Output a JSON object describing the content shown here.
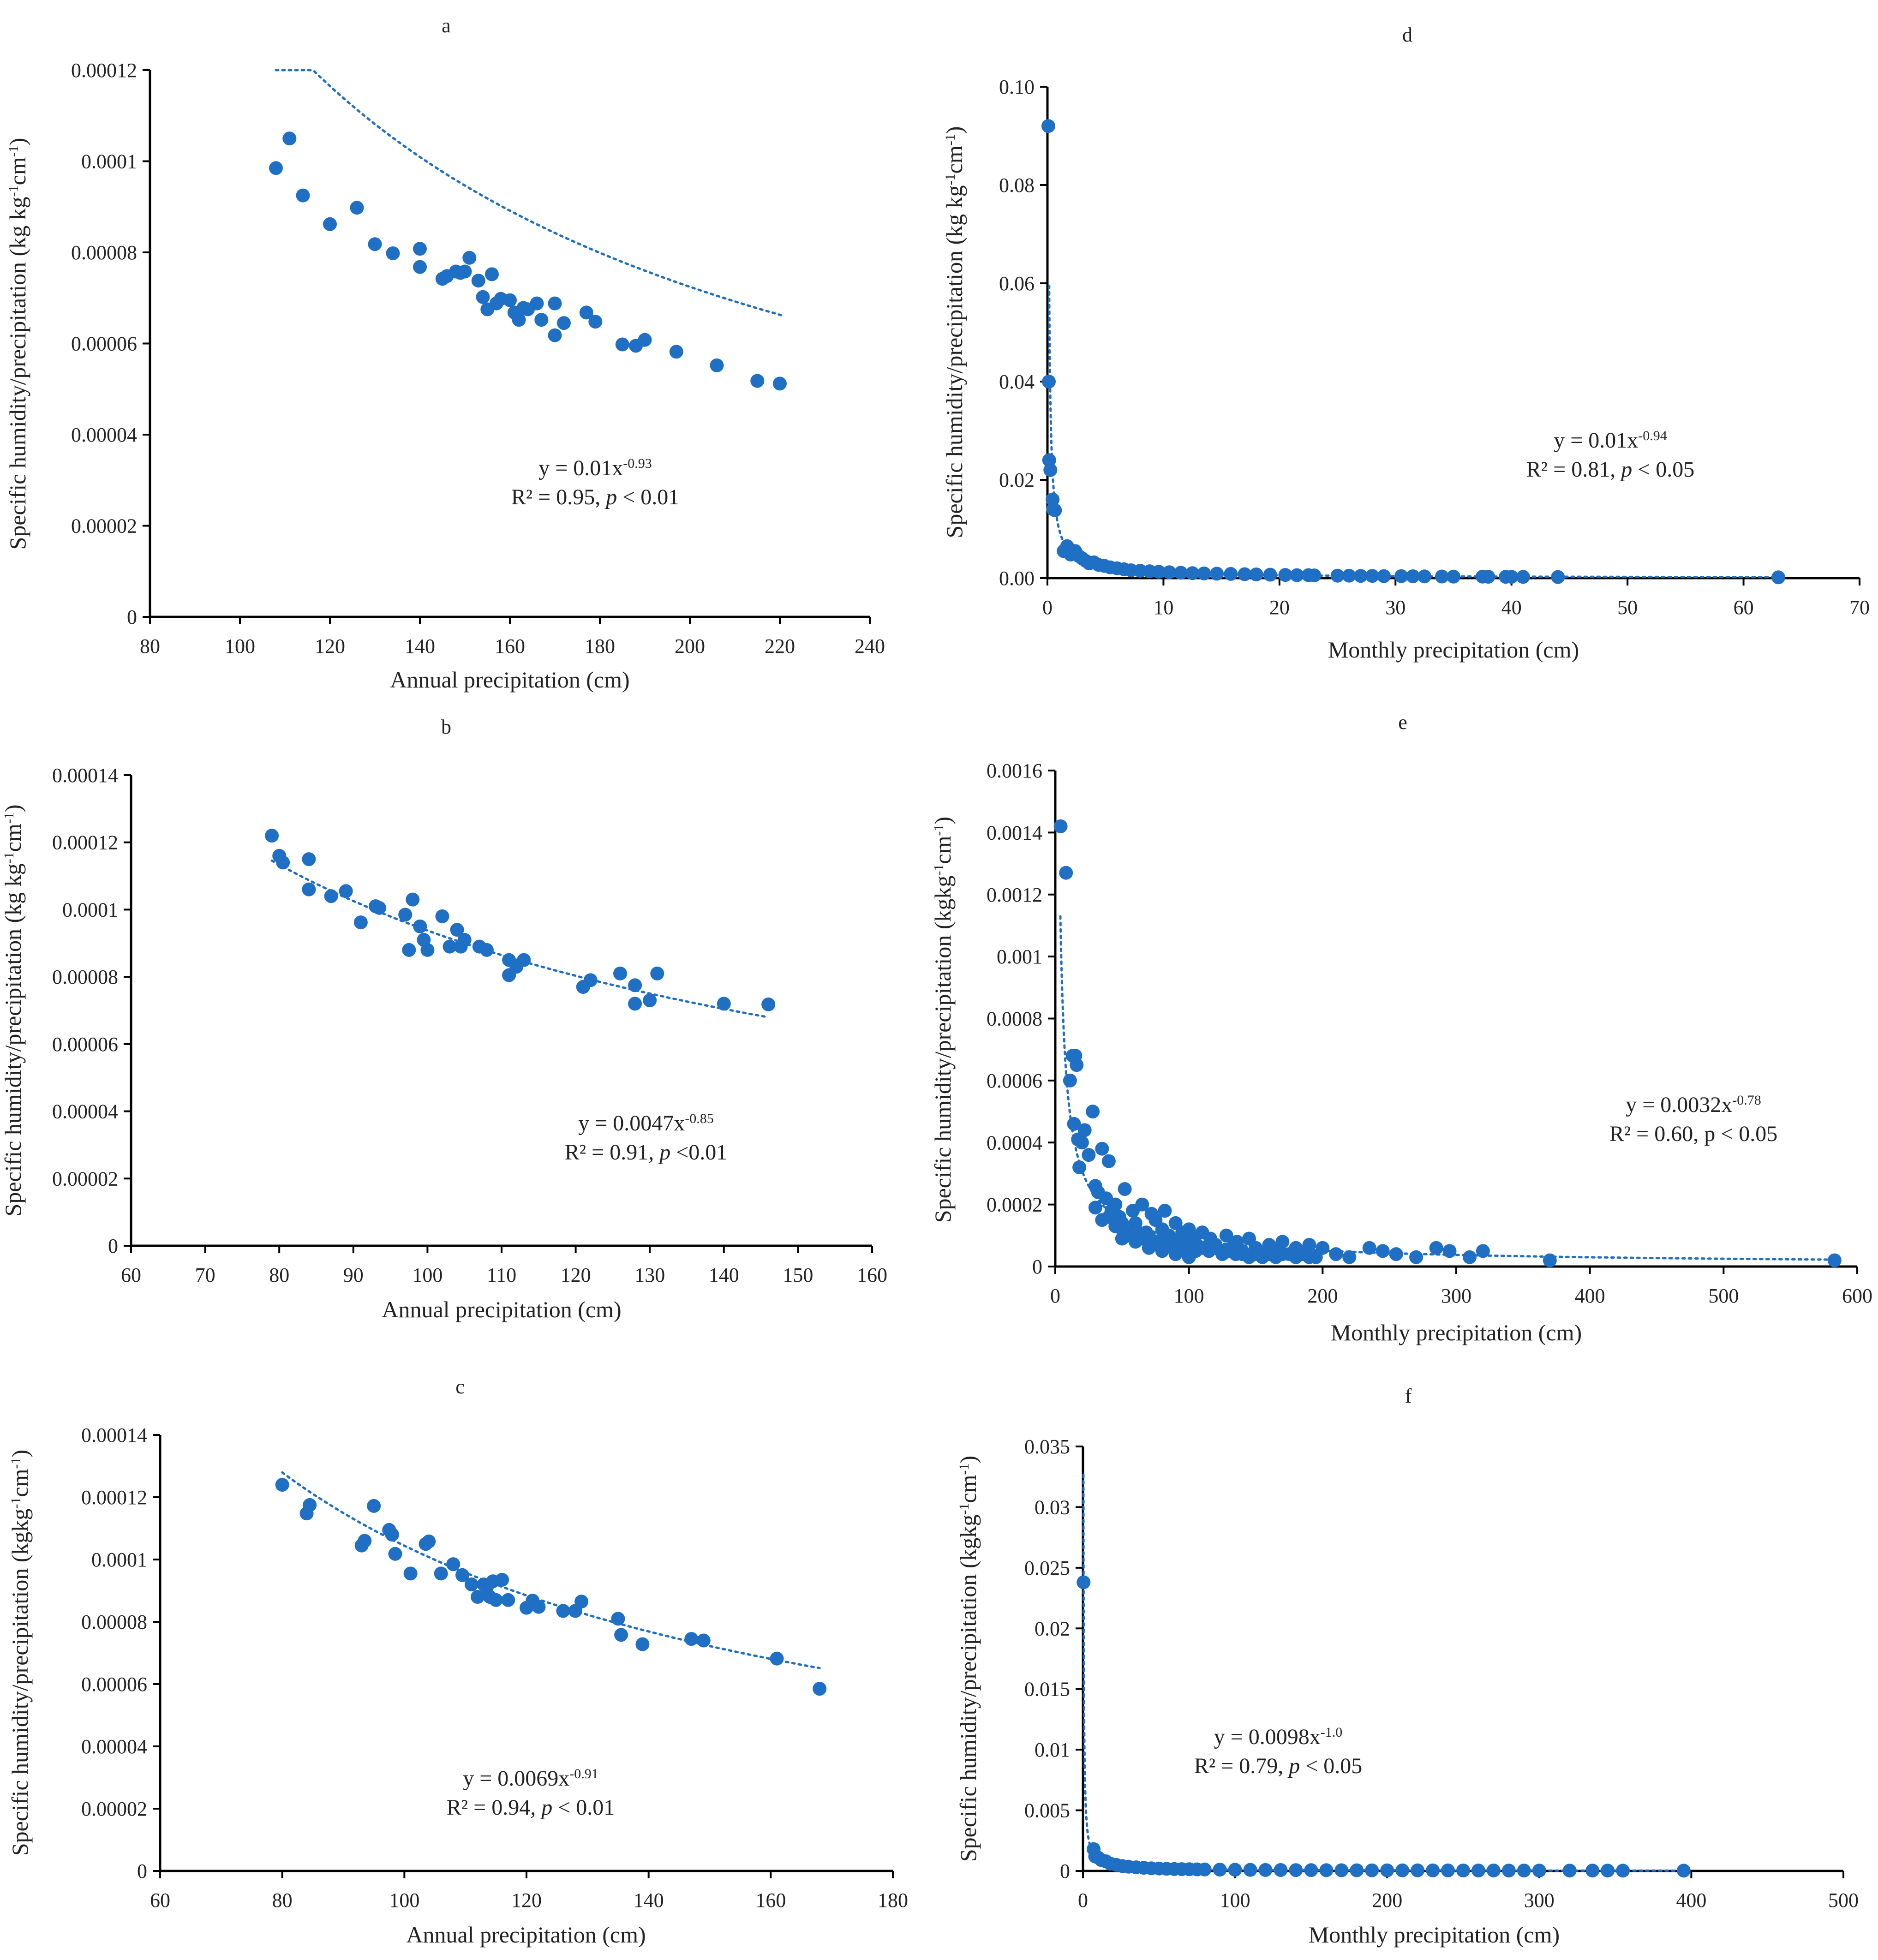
{
  "chart_data": [
    {
      "panel": "a",
      "type": "scatter",
      "xlabel": "Annual precipitation (cm)",
      "ylabel_main": "Specific humidity/precipitation (kg kg",
      "ylabel_sup1": "-1",
      "ylabel_mid": "cm",
      "ylabel_sup2": "-1",
      "ylabel_end": ")",
      "xlim": [
        80,
        240
      ],
      "ylim": [
        0,
        0.00012
      ],
      "x_ticks": [
        80,
        100,
        120,
        140,
        160,
        180,
        200,
        220,
        240
      ],
      "x_tick_labels": [
        "80",
        "100",
        "120",
        "140",
        "160",
        "180",
        "200",
        "220",
        "240"
      ],
      "y_ticks": [
        0,
        2e-05,
        4e-05,
        6e-05,
        8e-05,
        0.0001,
        0.00012
      ],
      "y_tick_labels": [
        "0",
        "0.00002",
        "0.00004",
        "0.00006",
        "0.00008",
        "0.0001",
        "0.00012"
      ],
      "color": "#1f6fc5",
      "trendline": {
        "type": "power",
        "a": 0.01,
        "b": -0.93,
        "x_range": [
          108,
          221
        ]
      },
      "equation_line1_prefix": "y = 0.01x",
      "equation_line1_sup": "-0.93",
      "equation_line2_a": "R² = 0.95, ",
      "equation_line2_p": "p",
      "equation_line2_b": " < 0.01",
      "x": [
        108,
        111,
        114,
        120,
        126,
        130,
        134,
        140,
        140,
        145,
        146,
        148,
        149,
        150,
        151,
        153,
        154,
        155,
        156,
        157,
        158,
        160,
        161,
        162,
        163,
        164,
        166,
        167,
        170,
        170,
        172,
        177,
        179,
        185,
        188,
        190,
        197,
        206,
        215,
        220
      ],
      "y": [
        9.85e-05,
        0.000105,
        9.25e-05,
        8.62e-05,
        8.98e-05,
        8.18e-05,
        7.98e-05,
        7.68e-05,
        8.08e-05,
        7.42e-05,
        7.48e-05,
        7.58e-05,
        7.55e-05,
        7.58e-05,
        7.88e-05,
        7.38e-05,
        7.02e-05,
        6.75e-05,
        7.52e-05,
        6.88e-05,
        6.98e-05,
        6.95e-05,
        6.68e-05,
        6.52e-05,
        6.78e-05,
        6.75e-05,
        6.88e-05,
        6.52e-05,
        6.18e-05,
        6.88e-05,
        6.45e-05,
        6.68e-05,
        6.48e-05,
        5.98e-05,
        5.95e-05,
        6.08e-05,
        5.82e-05,
        5.52e-05,
        5.18e-05,
        5.12e-05
      ]
    },
    {
      "panel": "b",
      "type": "scatter",
      "xlabel": "Annual precipitation (cm)",
      "ylabel_main": "Specific humidity/precipitation (kg kg",
      "ylabel_sup1": "-1",
      "ylabel_mid": "cm",
      "ylabel_sup2": "-1",
      "ylabel_end": ")",
      "xlim": [
        60,
        160
      ],
      "ylim": [
        0,
        0.00014
      ],
      "x_ticks": [
        60,
        70,
        80,
        90,
        100,
        110,
        120,
        130,
        140,
        150,
        160
      ],
      "x_tick_labels": [
        "60",
        "70",
        "80",
        "90",
        "100",
        "110",
        "120",
        "130",
        "140",
        "150",
        "160"
      ],
      "y_ticks": [
        0,
        2e-05,
        4e-05,
        6e-05,
        8e-05,
        0.0001,
        0.00012,
        0.00014
      ],
      "y_tick_labels": [
        "0",
        "0.00002",
        "0.00004",
        "0.00006",
        "0.00008",
        "0.0001",
        "0.00012",
        "0.00014"
      ],
      "color": "#1f6fc5",
      "trendline": {
        "type": "power",
        "a": 0.0047,
        "b": -0.85,
        "x_range": [
          79,
          146
        ]
      },
      "equation_line1_prefix": "y = 0.0047x",
      "equation_line1_sup": "-0.85",
      "equation_line2_a": "R² = 0.91, ",
      "equation_line2_p": "p",
      "equation_line2_b": " <0.01",
      "x": [
        79,
        80,
        80.5,
        84,
        84,
        87,
        89,
        91,
        93,
        93.5,
        97,
        97.5,
        98,
        99,
        99.5,
        100,
        102,
        103,
        104,
        104.5,
        105,
        107,
        108,
        111,
        111,
        112,
        113,
        121,
        122,
        126,
        128,
        128,
        130,
        131,
        140,
        146
      ],
      "y": [
        0.000122,
        0.000116,
        0.000114,
        0.000115,
        0.000106,
        0.000104,
        0.0001055,
        9.62e-05,
        0.000101,
        0.0001005,
        9.85e-05,
        8.8e-05,
        0.000103,
        9.5e-05,
        9.1e-05,
        8.8e-05,
        9.8e-05,
        8.9e-05,
        9.4e-05,
        8.9e-05,
        9.1e-05,
        8.9e-05,
        8.8e-05,
        8.5e-05,
        8.05e-05,
        8.3e-05,
        8.5e-05,
        7.7e-05,
        7.9e-05,
        8.1e-05,
        7.75e-05,
        7.2e-05,
        7.3e-05,
        8.1e-05,
        7.2e-05,
        7.18e-05
      ]
    },
    {
      "panel": "c",
      "type": "scatter",
      "xlabel": "Annual precipitation (cm)",
      "ylabel_main": "Specific humidity/precipitation (kgkg",
      "ylabel_sup1": "-1",
      "ylabel_mid": "cm",
      "ylabel_sup2": "-1",
      "ylabel_end": ")",
      "xlim": [
        60,
        180
      ],
      "ylim": [
        0,
        0.00014
      ],
      "x_ticks": [
        60,
        80,
        100,
        120,
        140,
        160,
        180
      ],
      "x_tick_labels": [
        "60",
        "80",
        "100",
        "120",
        "140",
        "160",
        "180"
      ],
      "y_ticks": [
        0,
        2e-05,
        4e-05,
        6e-05,
        8e-05,
        0.0001,
        0.00012,
        0.00014
      ],
      "y_tick_labels": [
        "0",
        "0.00002",
        "0.00004",
        "0.00006",
        "0.00008",
        "0.0001",
        "0.00012",
        "0.00014"
      ],
      "color": "#1f6fc5",
      "trendline": {
        "type": "power",
        "a": 0.0069,
        "b": -0.91,
        "x_range": [
          80,
          168
        ]
      },
      "equation_line1_prefix": "y = 0.0069x",
      "equation_line1_sup": "-0.91",
      "equation_line2_a": "R² = 0.94, ",
      "equation_line2_p": "p",
      "equation_line2_b": " < 0.01",
      "x": [
        80,
        84,
        84.5,
        93,
        93.5,
        95,
        97.5,
        98,
        98.5,
        101,
        103.5,
        104,
        106,
        108,
        109.5,
        111,
        112,
        113,
        113.5,
        114,
        114.5,
        115,
        116,
        117,
        120,
        121,
        122,
        126,
        128,
        129,
        135,
        135.5,
        139,
        147,
        149,
        161,
        168
      ],
      "y": [
        0.000124,
        0.0001148,
        0.0001175,
        0.0001045,
        0.000106,
        0.0001172,
        0.0001095,
        0.000108,
        0.0001018,
        9.55e-05,
        0.000105,
        0.0001058,
        9.55e-05,
        9.85e-05,
        9.5e-05,
        9.2e-05,
        8.8e-05,
        9.2e-05,
        9.1e-05,
        8.8e-05,
        9.3e-05,
        8.7e-05,
        9.35e-05,
        8.7e-05,
        8.45e-05,
        8.68e-05,
        8.48e-05,
        8.35e-05,
        8.35e-05,
        8.65e-05,
        8.1e-05,
        7.58e-05,
        7.28e-05,
        7.45e-05,
        7.4e-05,
        6.82e-05,
        5.85e-05
      ]
    },
    {
      "panel": "d",
      "type": "scatter",
      "xlabel": "Monthly precipitation (cm)",
      "ylabel_main": "Specific humidity/precipitation (kg kg",
      "ylabel_sup1": "-1",
      "ylabel_mid": "cm",
      "ylabel_sup2": "-1",
      "ylabel_end": ")",
      "xlim": [
        0,
        70
      ],
      "ylim": [
        0,
        0.1
      ],
      "x_ticks": [
        0,
        10,
        20,
        30,
        40,
        50,
        60,
        70
      ],
      "x_tick_labels": [
        "0",
        "10",
        "20",
        "30",
        "40",
        "50",
        "60",
        "70"
      ],
      "y_ticks": [
        0,
        0.02,
        0.04,
        0.06,
        0.08,
        0.1
      ],
      "y_tick_labels": [
        "0.00",
        "0.02",
        "0.04",
        "0.06",
        "0.08",
        "0.10"
      ],
      "color": "#1f6fc5",
      "trendline": {
        "type": "power",
        "a": 0.01,
        "b": -0.94,
        "x_range": [
          0.15,
          63
        ]
      },
      "equation_line1_prefix": "y = 0.01x",
      "equation_line1_sup": "-0.94",
      "equation_line2_a": "R² = 0.81, ",
      "equation_line2_p": "p",
      "equation_line2_b": " < 0.05",
      "x": [
        0.08,
        0.12,
        0.15,
        0.25,
        0.45,
        0.5,
        0.65,
        1.4,
        1.7,
        2.0,
        2.4,
        2.7,
        3.0,
        3.3,
        3.6,
        4.0,
        4.4,
        4.9,
        5.4,
        6.0,
        6.6,
        7.2,
        8.0,
        8.8,
        9.6,
        10.5,
        11.5,
        12.5,
        13.5,
        14.6,
        15.8,
        17.0,
        18.0,
        19.2,
        20.5,
        21.5,
        22.5,
        23.0,
        25.0,
        26.0,
        27.0,
        28.0,
        29.0,
        30.5,
        31.5,
        32.5,
        34.0,
        35.0,
        37.5,
        38.0,
        39.5,
        40.0,
        41.0,
        44.0,
        63.0
      ],
      "y": [
        0.092,
        0.04,
        0.024,
        0.022,
        0.016,
        0.014,
        0.0138,
        0.0055,
        0.0065,
        0.0048,
        0.0055,
        0.0045,
        0.004,
        0.0035,
        0.003,
        0.0032,
        0.0027,
        0.0025,
        0.0022,
        0.002,
        0.0018,
        0.0016,
        0.0015,
        0.0014,
        0.0013,
        0.0012,
        0.0011,
        0.001,
        0.00095,
        0.0009,
        0.00085,
        0.0008,
        0.00075,
        0.0007,
        0.00065,
        0.0006,
        0.0006,
        0.00055,
        0.0005,
        0.0005,
        0.00045,
        0.00045,
        0.0004,
        0.0004,
        0.00038,
        0.00035,
        0.00033,
        0.0003,
        0.0003,
        0.00028,
        0.00027,
        0.00026,
        0.00025,
        0.00023,
        0.00016
      ]
    },
    {
      "panel": "e",
      "type": "scatter",
      "xlabel": "Monthly precipitation (cm)",
      "ylabel_main": "Specific humidity/precipitation (kgkg",
      "ylabel_sup1": "-1",
      "ylabel_mid": "cm",
      "ylabel_sup2": "-1",
      "ylabel_end": ")",
      "xlim": [
        0,
        600
      ],
      "ylim": [
        0,
        0.0016
      ],
      "x_ticks": [
        0,
        100,
        200,
        300,
        400,
        500,
        600
      ],
      "x_tick_labels": [
        "0",
        "100",
        "200",
        "300",
        "400",
        "500",
        "600"
      ],
      "y_ticks": [
        0,
        0.0002,
        0.0004,
        0.0006,
        0.0008,
        0.001,
        0.0012,
        0.0014,
        0.0016
      ],
      "y_tick_labels": [
        "0",
        "0.0002",
        "0.0004",
        "0.0006",
        "0.0008",
        "0.001",
        "0.0012",
        "0.0014",
        "0.0016"
      ],
      "color": "#1f6fc5",
      "trendline": {
        "type": "power",
        "a": 0.0032,
        "b": -0.78,
        "x_range": [
          3.8,
          585
        ]
      },
      "equation_line1_prefix": "y = 0.0032x",
      "equation_line1_sup": "-0.78",
      "equation_line2_a": "R² = 0.60, p < 0.05",
      "equation_line2_p": "",
      "equation_line2_b": "",
      "x": [
        4,
        8,
        11,
        13,
        14,
        15,
        16,
        17,
        18,
        20,
        22,
        25,
        28,
        30,
        32,
        35,
        38,
        40,
        42,
        45,
        48,
        50,
        52,
        55,
        58,
        60,
        62,
        65,
        68,
        70,
        72,
        75,
        78,
        80,
        82,
        85,
        88,
        90,
        92,
        95,
        98,
        100,
        103,
        106,
        110,
        113,
        116,
        120,
        124,
        128,
        132,
        136,
        140,
        145,
        150,
        155,
        160,
        165,
        170,
        175,
        180,
        185,
        190,
        195,
        200,
        210,
        220,
        235,
        245,
        255,
        270,
        285,
        295,
        310,
        320,
        370,
        583,
        35,
        45,
        55,
        65,
        75,
        85,
        95,
        105,
        115,
        125,
        135,
        145,
        155,
        165,
        30,
        40,
        50,
        60,
        70,
        80,
        90,
        100,
        110,
        120,
        130,
        140,
        150,
        160,
        170,
        180,
        190,
        50,
        60,
        70,
        80,
        90,
        100
      ],
      "y": [
        0.00142,
        0.00127,
        0.0006,
        0.00068,
        0.00046,
        0.00068,
        0.00065,
        0.00041,
        0.00032,
        0.0004,
        0.00044,
        0.00036,
        0.0005,
        0.00026,
        0.00024,
        0.00038,
        0.00022,
        0.00034,
        0.00018,
        0.0002,
        0.00016,
        0.00012,
        0.00025,
        0.0001,
        0.00018,
        0.00014,
        9e-05,
        0.0002,
        0.00011,
        8e-05,
        0.00017,
        0.00015,
        7e-05,
        0.00012,
        0.00018,
        0.0001,
        6e-05,
        0.00014,
        8e-05,
        0.00011,
        6e-05,
        0.00012,
        9e-05,
        7e-05,
        0.00011,
        6e-05,
        9e-05,
        7e-05,
        5e-05,
        0.0001,
        6e-05,
        8e-05,
        4e-05,
        9e-05,
        6e-05,
        4e-05,
        7e-05,
        5e-05,
        8e-05,
        4e-05,
        6e-05,
        4e-05,
        7e-05,
        3e-05,
        6e-05,
        4e-05,
        3e-05,
        6e-05,
        5e-05,
        4e-05,
        3e-05,
        6e-05,
        5e-05,
        3e-05,
        5e-05,
        2e-05,
        2e-05,
        0.00015,
        0.00013,
        0.00011,
        9e-05,
        8e-05,
        7e-05,
        6e-05,
        5e-05,
        5e-05,
        4e-05,
        4e-05,
        3e-05,
        3e-05,
        3e-05,
        0.00019,
        0.00016,
        0.00014,
        0.00012,
        0.0001,
        9e-05,
        8e-05,
        7e-05,
        6e-05,
        6e-05,
        5e-05,
        5e-05,
        4e-05,
        4e-05,
        4e-05,
        3e-05,
        3e-05,
        9e-05,
        8e-05,
        6e-05,
        5e-05,
        4e-05,
        3e-05
      ]
    },
    {
      "panel": "f",
      "type": "scatter",
      "xlabel": "Monthly precipitation (cm)",
      "ylabel_main": "Specific humidity/precipitation (kgkg",
      "ylabel_sup1": "-1",
      "ylabel_mid": "cm",
      "ylabel_sup2": "-1",
      "ylabel_end": ")",
      "xlim": [
        0,
        500
      ],
      "ylim": [
        0,
        0.035
      ],
      "x_ticks": [
        0,
        100,
        200,
        300,
        400,
        500
      ],
      "x_tick_labels": [
        "0",
        "100",
        "200",
        "300",
        "400",
        "500"
      ],
      "y_ticks": [
        0,
        0.005,
        0.01,
        0.015,
        0.02,
        0.025,
        0.03,
        0.035
      ],
      "y_tick_labels": [
        "0",
        "0.005",
        "0.01",
        "0.015",
        "0.02",
        "0.025",
        "0.03",
        "0.035"
      ],
      "color": "#1f6fc5",
      "trendline": {
        "type": "power",
        "a": 0.0098,
        "b": -1.0,
        "x_range": [
          0.3,
          398
        ]
      },
      "equation_line1_prefix": "y = 0.0098x",
      "equation_line1_sup": "-1.0",
      "equation_line2_a": "R² = 0.79, ",
      "equation_line2_p": "p",
      "equation_line2_b": " < 0.05",
      "x": [
        0.4,
        7,
        8,
        10,
        12,
        15,
        18,
        22,
        26,
        30,
        35,
        40,
        45,
        50,
        55,
        60,
        65,
        70,
        75,
        80,
        90,
        100,
        110,
        120,
        130,
        140,
        150,
        160,
        170,
        180,
        190,
        200,
        210,
        220,
        230,
        240,
        250,
        260,
        270,
        280,
        290,
        300,
        320,
        335,
        345,
        355,
        395
      ],
      "y": [
        0.0238,
        0.0018,
        0.0012,
        0.0011,
        0.0009,
        0.0008,
        0.0006,
        0.0005,
        0.0004,
        0.00035,
        0.0003,
        0.00026,
        0.00022,
        0.0002,
        0.00018,
        0.00016,
        0.00015,
        0.00014,
        0.00013,
        0.00012,
        0.00011,
        0.0001,
        9e-05,
        8e-05,
        7.5e-05,
        7e-05,
        6.5e-05,
        6e-05,
        5.8e-05,
        5.5e-05,
        5e-05,
        4.8e-05,
        4.6e-05,
        4.4e-05,
        4.2e-05,
        4e-05,
        3.9e-05,
        3.8e-05,
        3.7e-05,
        3.6e-05,
        3.5e-05,
        3.4e-05,
        3.2e-05,
        3e-05,
        3e-05,
        2.8e-05,
        2.5e-05
      ]
    }
  ]
}
